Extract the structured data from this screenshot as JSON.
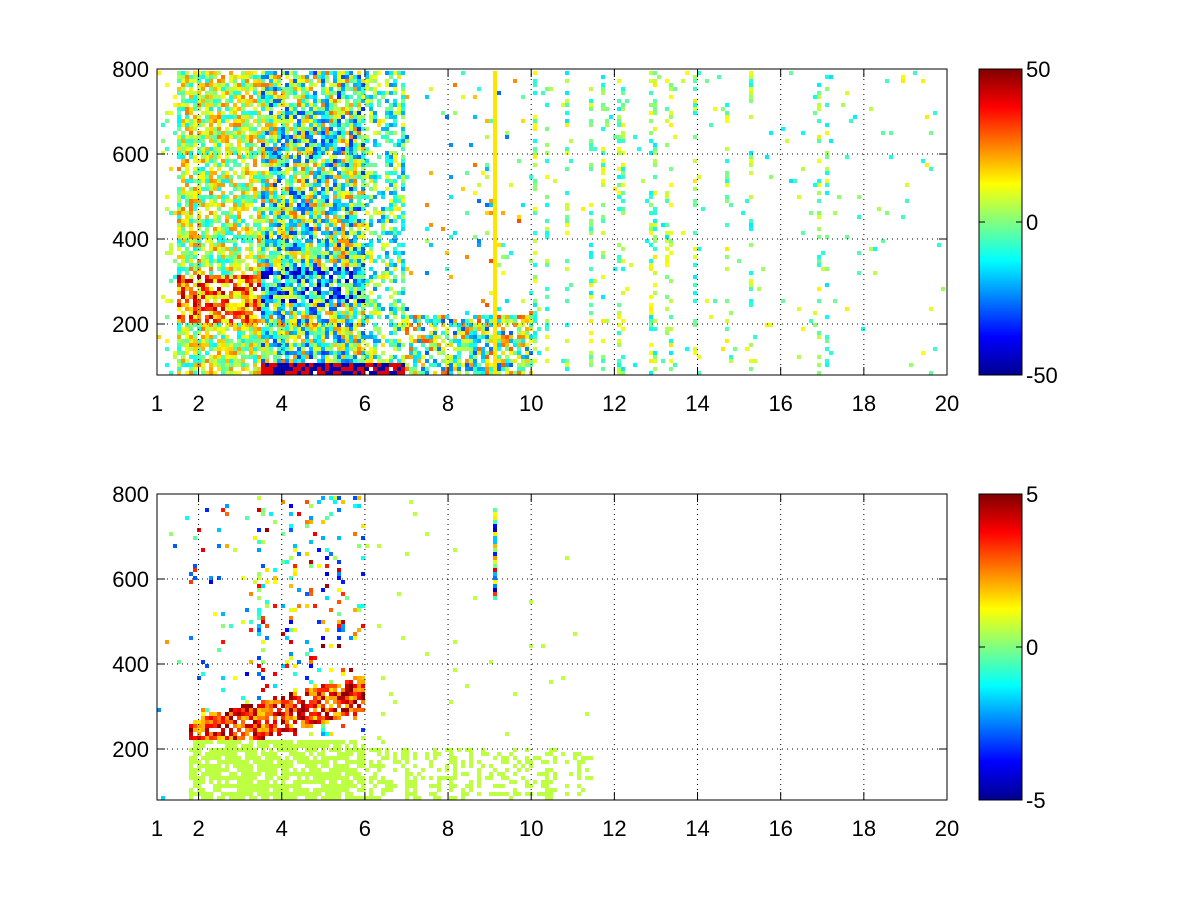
{
  "chart_data": [
    {
      "type": "heatmap",
      "title": "",
      "xlabel": "",
      "ylabel": "",
      "xlim": [
        1,
        20
      ],
      "ylim": [
        80,
        800
      ],
      "xticks": [
        1,
        2,
        4,
        6,
        8,
        10,
        12,
        14,
        16,
        18,
        20
      ],
      "yticks": [
        200,
        400,
        600,
        800
      ],
      "grid": "dotted",
      "colormap": "jet",
      "colorbar": {
        "min": -50,
        "max": 50,
        "ticks": [
          50,
          0,
          -50
        ]
      },
      "regions": [
        {
          "x": [
            1.5,
            7.0
          ],
          "y": [
            80,
            800
          ],
          "values": "-50 to 50, dense"
        },
        {
          "x": [
            7.0,
            10.0
          ],
          "y": [
            80,
            220
          ],
          "values": "-50 to 50, dense near bottom"
        },
        {
          "x": [
            7.0,
            20.0
          ],
          "y": [
            80,
            800
          ],
          "values": "-20 to 20, sparse columns"
        }
      ],
      "features": [
        {
          "x": 9.1,
          "y": [
            80,
            800
          ],
          "value": 15,
          "note": "continuous vertical streak"
        },
        {
          "x": [
            2.0,
            6.0
          ],
          "y": [
            200,
            320
          ],
          "value": 25,
          "note": "band of high values rising with x"
        },
        {
          "x": [
            3.5,
            7.0
          ],
          "y": [
            80,
            110
          ],
          "value": -45,
          "note": "low values along bottom"
        }
      ]
    },
    {
      "type": "heatmap",
      "title": "",
      "xlabel": "",
      "ylabel": "",
      "xlim": [
        1,
        20
      ],
      "ylim": [
        80,
        800
      ],
      "xticks": [
        1,
        2,
        4,
        6,
        8,
        10,
        12,
        14,
        16,
        18,
        20
      ],
      "yticks": [
        200,
        400,
        600,
        800
      ],
      "grid": "dotted",
      "colormap": "jet",
      "colorbar": {
        "min": -5,
        "max": 5,
        "ticks": [
          5,
          0,
          -5
        ]
      },
      "regions": [
        {
          "x": [
            1.8,
            6.0
          ],
          "y": [
            220,
            800
          ],
          "values": "-5 to 5, sparse"
        },
        {
          "x": [
            1.8,
            11.5
          ],
          "y": [
            80,
            220
          ],
          "values": "about 0.5, light green"
        }
      ],
      "features": [
        {
          "x": [
            2.0,
            6.0
          ],
          "y": [
            230,
            330
          ],
          "value": 2.5,
          "note": "rising band of yellow/red values"
        },
        {
          "x": 9.1,
          "y": [
            550,
            770
          ],
          "value": 0,
          "note": "short multicolor vertical streak"
        }
      ]
    }
  ]
}
